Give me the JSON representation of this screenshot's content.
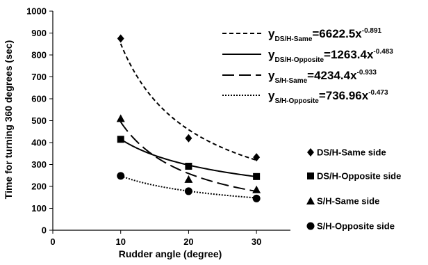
{
  "chart_data": {
    "type": "scatter",
    "xlabel": "Rudder angle (degree)",
    "ylabel": "Time for turning 360 degrees (sec)",
    "xlim": [
      0,
      35
    ],
    "ylim": [
      0,
      1000
    ],
    "xticks": [
      "0",
      "10",
      "20",
      "30"
    ],
    "yticks": [
      "0",
      "100",
      "200",
      "300",
      "400",
      "500",
      "600",
      "700",
      "800",
      "900",
      "1000"
    ],
    "grid": false,
    "legend_position": "right",
    "series": [
      {
        "name": "DS/H-Same side",
        "marker": "diamond",
        "x": [
          10,
          20,
          30
        ],
        "y": [
          875,
          420,
          333
        ],
        "fit": {
          "a": 6622.5,
          "b": -0.891,
          "dash": "short-dash",
          "eq_prefix": "y",
          "eq_sub": "DS/H-Same",
          "eq_rhs": "=6622.5x",
          "eq_exp": "-0.891"
        }
      },
      {
        "name": "DS/H-Opposite side",
        "marker": "square",
        "x": [
          10,
          20,
          30
        ],
        "y": [
          415,
          292,
          245
        ],
        "fit": {
          "a": 1263.4,
          "b": -0.483,
          "dash": "solid",
          "eq_prefix": "y",
          "eq_sub": "DS/H-Opposite",
          "eq_rhs": "=1263.4x",
          "eq_exp": "-0.483"
        }
      },
      {
        "name": "S/H-Same side",
        "marker": "triangle",
        "x": [
          10,
          20,
          30
        ],
        "y": [
          510,
          232,
          185
        ],
        "fit": {
          "a": 4234.4,
          "b": -0.933,
          "dash": "long-dash",
          "eq_prefix": "y",
          "eq_sub": "S/H-Same",
          "eq_rhs": "=4234.4x",
          "eq_exp": "-0.933"
        }
      },
      {
        "name": "S/H-Opposite side",
        "marker": "circle",
        "x": [
          10,
          20,
          30
        ],
        "y": [
          248,
          178,
          145
        ],
        "fit": {
          "a": 736.96,
          "b": -0.473,
          "dash": "dotted",
          "eq_prefix": "y",
          "eq_sub": "S/H-Opposite",
          "eq_rhs": "=736.96x",
          "eq_exp": "-0.473"
        }
      }
    ]
  }
}
